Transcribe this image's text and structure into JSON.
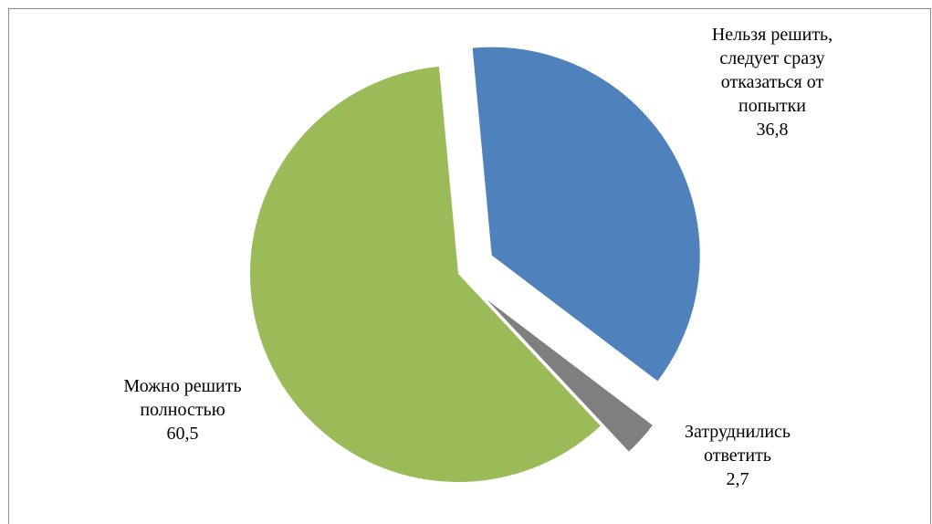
{
  "chart_data": {
    "type": "pie",
    "title": "",
    "slices": [
      {
        "label_lines": [
          "Нельзя решить,",
          "следует сразу",
          "отказаться от",
          "попытки"
        ],
        "value": 36.8,
        "value_text": "36,8",
        "color": "#4f81bd",
        "exploded": true
      },
      {
        "label_lines": [
          "Затруднились",
          "ответить"
        ],
        "value": 2.7,
        "value_text": "2,7",
        "color": "#7f7f7f",
        "exploded": true
      },
      {
        "label_lines": [
          "Можно решить",
          "полностью"
        ],
        "value": 60.5,
        "value_text": "60,5",
        "color": "#9bbb59",
        "exploded": false
      }
    ]
  }
}
